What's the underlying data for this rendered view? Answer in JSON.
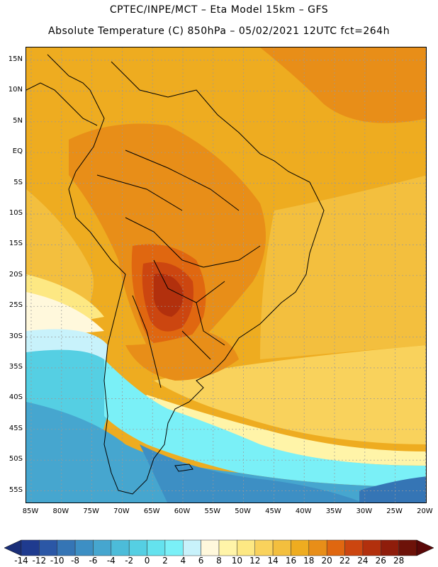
{
  "title": {
    "line1": "CPTEC/INPE/MCT –  Eta Model 15km – GFS",
    "line2": "Absolute Temperature (C) 850hPa – 05/02/2021 12UTC fct=264h"
  },
  "lat_labels": [
    "15N",
    "10N",
    "5N",
    "EQ",
    "5S",
    "10S",
    "15S",
    "20S",
    "25S",
    "30S",
    "35S",
    "40S",
    "45S",
    "50S",
    "55S"
  ],
  "lon_labels": [
    "85W",
    "80W",
    "75W",
    "70W",
    "65W",
    "60W",
    "55W",
    "50W",
    "45W",
    "40W",
    "35W",
    "30W",
    "25W",
    "20W"
  ],
  "colorbar": {
    "labels": [
      "-14",
      "-12",
      "-10",
      "-8",
      "-6",
      "-4",
      "-2",
      "0",
      "2",
      "4",
      "6",
      "8",
      "10",
      "12",
      "14",
      "16",
      "18",
      "20",
      "22",
      "24",
      "26",
      "28"
    ],
    "colors": [
      "#1f3b8f",
      "#2b57a6",
      "#3575b5",
      "#3d8fc4",
      "#46a6cf",
      "#4cbcd9",
      "#55cfe3",
      "#64e2ee",
      "#7af0f7",
      "#c8f2fb",
      "#fff8dc",
      "#fff4a8",
      "#fde883",
      "#f9d25c",
      "#f3bf3e",
      "#eeac20",
      "#e88e18",
      "#e06710",
      "#cc4610",
      "#b2300d",
      "#8f1d0b",
      "#6d1209"
    ],
    "under_color": "#1a2e78",
    "over_color": "#5a0808"
  },
  "field_colors": {
    "ocean_n": "#eeac20",
    "ocean_mid": "#f3bf3e",
    "ocean_s": "#f9d25c",
    "warm": "#e88e18",
    "hot": "#e06710",
    "hotter": "#cc4610",
    "hottest": "#b2300d",
    "cool1": "#fde883",
    "cool2": "#fff4a8",
    "cool3": "#fff8dc",
    "cold1": "#c8f2fb",
    "cold2": "#7af0f7",
    "cold3": "#55cfe3",
    "cold4": "#46a6cf",
    "cold5": "#3d8fc4",
    "cold6": "#3575b5"
  }
}
